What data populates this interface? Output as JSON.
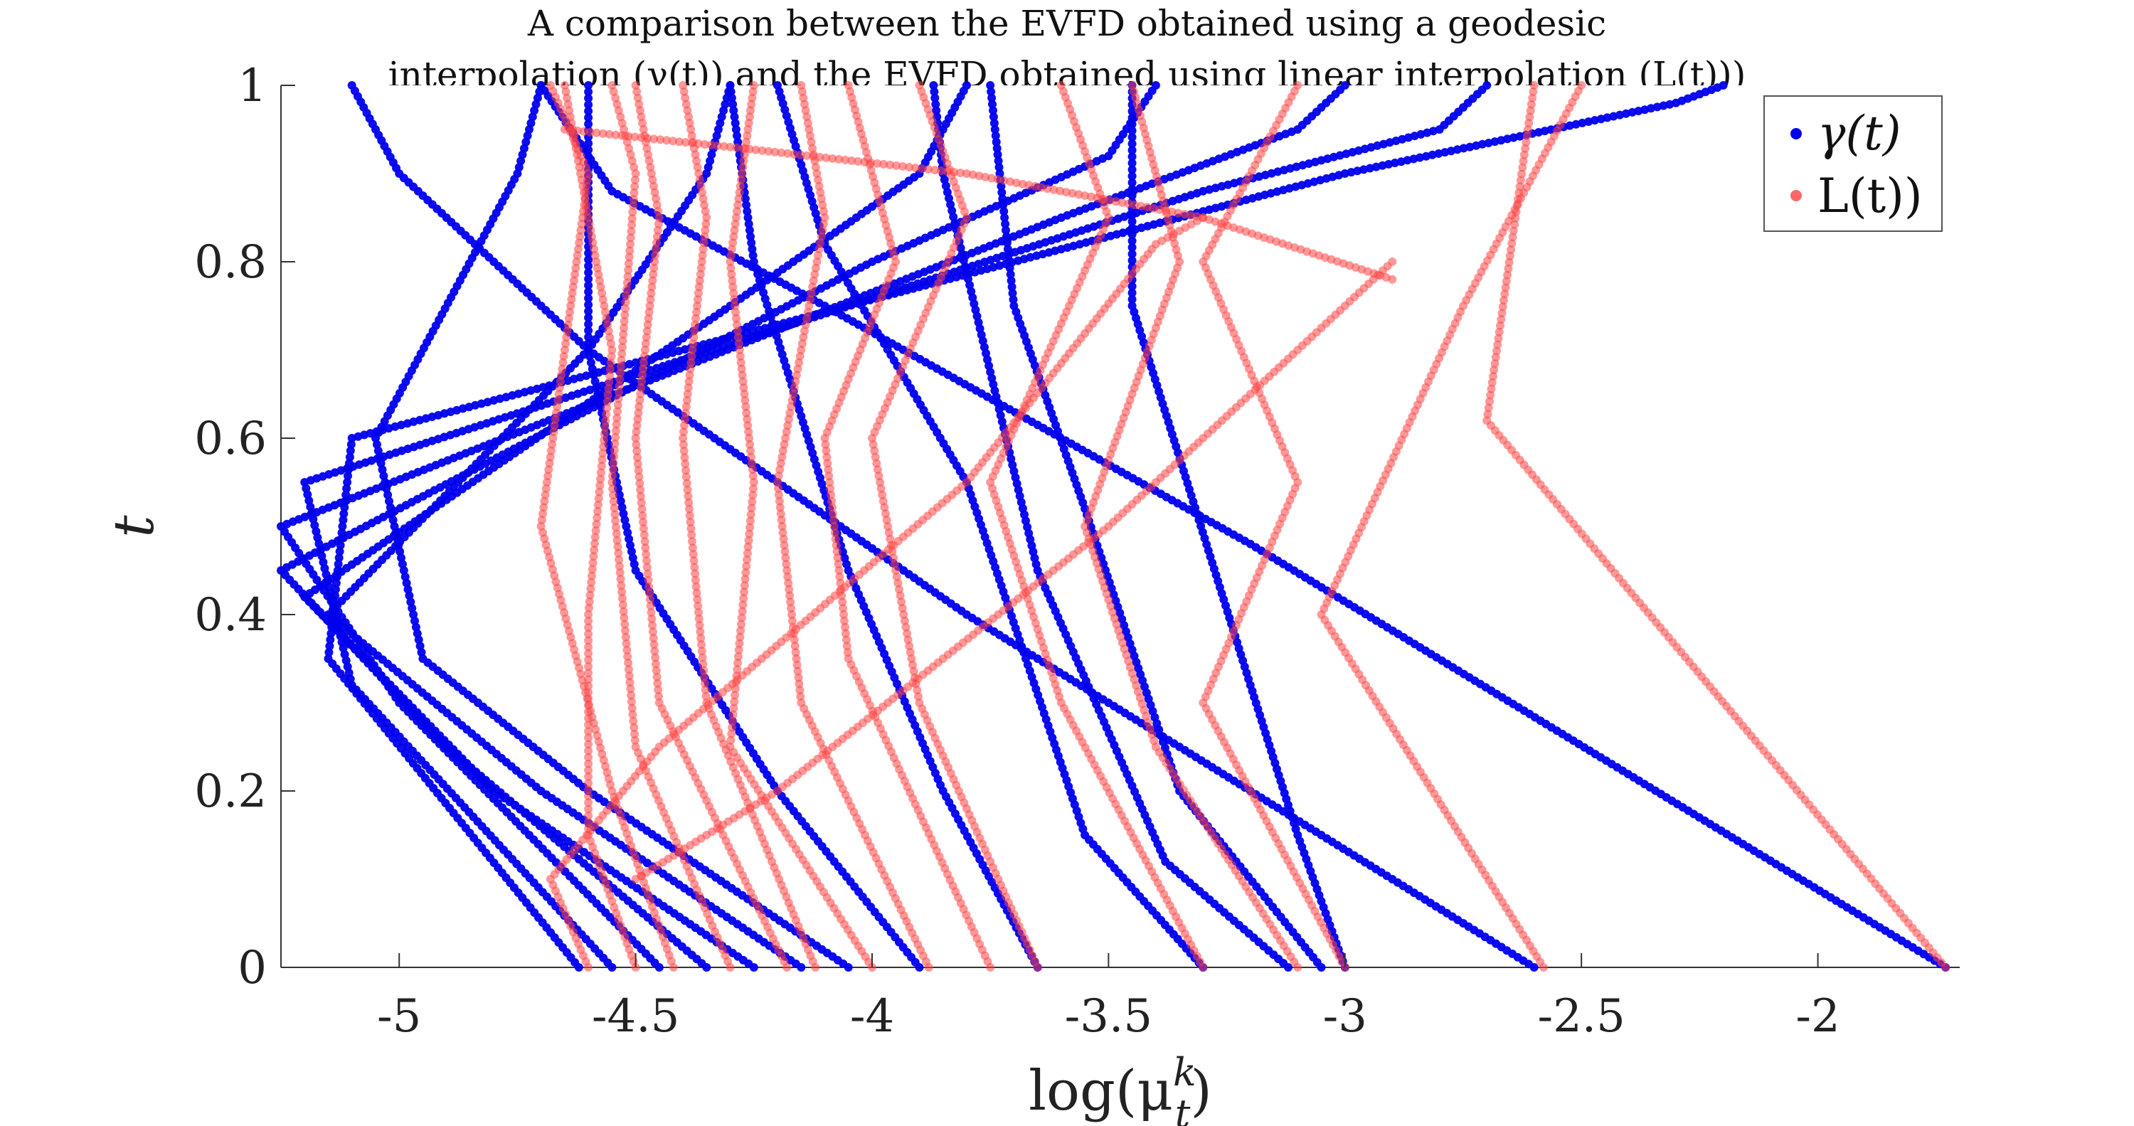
{
  "chart_data": {
    "type": "scatter",
    "title": [
      "A comparison between the EVFD obtained using a geodesic",
      "interpolation (γ(t)) and the EVFD obtained using linear interpolation (L(t)))"
    ],
    "xlabel": "log(μ",
    "xlabel_sup": "k",
    "xlabel_sub": "t",
    "xlabel_tail": ")",
    "ylabel": "t",
    "xlim": [
      -5.25,
      -1.7
    ],
    "ylim": [
      0,
      1
    ],
    "x_ticks": [
      -5,
      -4.5,
      -4,
      -3.5,
      -3,
      -2.5,
      -2
    ],
    "x_tick_labels": [
      "-5",
      "-4.5",
      "-4",
      "-3.5",
      "-3",
      "-2.5",
      "-2"
    ],
    "y_ticks": [
      0,
      0.2,
      0.4,
      0.6,
      0.8,
      1
    ],
    "y_tick_labels": [
      "0",
      "0.2",
      "0.4",
      "0.6",
      "0.8",
      "1"
    ],
    "legend": {
      "placement": "top-right",
      "entries": [
        {
          "label": "γ(t)",
          "color": "#0000ee"
        },
        {
          "label": "L(t))",
          "color": "#ff4444"
        }
      ]
    },
    "series": [
      {
        "legend_index": 0,
        "color": "#0000ee",
        "curves": [
          [
            [
              -1.73,
              0
            ],
            [
              -3.2,
              0.48
            ],
            [
              -4.1,
              0.75
            ],
            [
              -4.55,
              0.88
            ],
            [
              -4.7,
              1
            ]
          ],
          [
            [
              -2.6,
              0
            ],
            [
              -3.8,
              0.4
            ],
            [
              -4.6,
              0.7
            ],
            [
              -5.0,
              0.9
            ],
            [
              -5.1,
              1
            ]
          ],
          [
            [
              -3.0,
              0
            ],
            [
              -3.1,
              0.15
            ],
            [
              -3.2,
              0.32
            ],
            [
              -3.45,
              0.75
            ],
            [
              -3.45,
              1
            ]
          ],
          [
            [
              -3.05,
              0
            ],
            [
              -3.35,
              0.2
            ],
            [
              -3.55,
              0.52
            ],
            [
              -3.7,
              0.75
            ],
            [
              -3.75,
              1
            ]
          ],
          [
            [
              -3.12,
              0
            ],
            [
              -3.38,
              0.12
            ],
            [
              -3.65,
              0.45
            ],
            [
              -3.85,
              0.9
            ],
            [
              -3.87,
              1
            ]
          ],
          [
            [
              -3.3,
              0
            ],
            [
              -3.55,
              0.15
            ],
            [
              -3.8,
              0.55
            ],
            [
              -4.1,
              0.82
            ],
            [
              -4.2,
              1
            ]
          ],
          [
            [
              -3.65,
              0
            ],
            [
              -3.85,
              0.2
            ],
            [
              -4.05,
              0.45
            ],
            [
              -4.25,
              0.8
            ],
            [
              -4.3,
              1
            ]
          ],
          [
            [
              -3.9,
              0
            ],
            [
              -4.2,
              0.2
            ],
            [
              -4.5,
              0.45
            ],
            [
              -4.6,
              0.7
            ],
            [
              -4.6,
              1
            ]
          ],
          [
            [
              -4.05,
              0
            ],
            [
              -4.6,
              0.2
            ],
            [
              -4.95,
              0.35
            ],
            [
              -5.05,
              0.6
            ],
            [
              -4.75,
              0.9
            ],
            [
              -4.7,
              1
            ]
          ],
          [
            [
              -4.15,
              0
            ],
            [
              -4.7,
              0.2
            ],
            [
              -5.15,
              0.4
            ],
            [
              -4.6,
              0.7
            ],
            [
              -4.35,
              0.9
            ],
            [
              -4.3,
              1
            ]
          ],
          [
            [
              -4.25,
              0
            ],
            [
              -4.8,
              0.2
            ],
            [
              -5.2,
              0.42
            ],
            [
              -4.3,
              0.75
            ],
            [
              -3.9,
              0.9
            ],
            [
              -3.8,
              1
            ]
          ],
          [
            [
              -4.35,
              0
            ],
            [
              -4.9,
              0.25
            ],
            [
              -5.25,
              0.45
            ],
            [
              -4.0,
              0.8
            ],
            [
              -3.5,
              0.92
            ],
            [
              -3.4,
              1
            ]
          ],
          [
            [
              -4.45,
              0
            ],
            [
              -5.0,
              0.3
            ],
            [
              -5.25,
              0.5
            ],
            [
              -3.6,
              0.85
            ],
            [
              -3.1,
              0.95
            ],
            [
              -3.0,
              1
            ]
          ],
          [
            [
              -4.55,
              0
            ],
            [
              -5.1,
              0.32
            ],
            [
              -5.2,
              0.55
            ],
            [
              -3.3,
              0.88
            ],
            [
              -2.8,
              0.95
            ],
            [
              -2.7,
              1
            ]
          ],
          [
            [
              -4.62,
              0
            ],
            [
              -5.15,
              0.35
            ],
            [
              -5.1,
              0.6
            ],
            [
              -3.0,
              0.9
            ],
            [
              -2.3,
              0.98
            ],
            [
              -2.2,
              1
            ]
          ]
        ]
      },
      {
        "legend_index": 1,
        "color": "#ff4444",
        "curves": [
          [
            [
              -1.73,
              0
            ],
            [
              -2.7,
              0.62
            ],
            [
              -2.6,
              1
            ]
          ],
          [
            [
              -2.58,
              0
            ],
            [
              -3.05,
              0.4
            ],
            [
              -2.75,
              0.75
            ],
            [
              -2.5,
              1
            ]
          ],
          [
            [
              -3.0,
              0
            ],
            [
              -3.3,
              0.3
            ],
            [
              -3.1,
              0.55
            ],
            [
              -3.3,
              0.8
            ],
            [
              -3.1,
              1
            ]
          ],
          [
            [
              -3.1,
              0
            ],
            [
              -3.4,
              0.25
            ],
            [
              -3.55,
              0.5
            ],
            [
              -3.35,
              0.8
            ],
            [
              -3.45,
              1
            ]
          ],
          [
            [
              -3.3,
              0
            ],
            [
              -3.6,
              0.3
            ],
            [
              -3.75,
              0.55
            ],
            [
              -3.5,
              0.85
            ],
            [
              -3.6,
              1
            ]
          ],
          [
            [
              -3.65,
              0
            ],
            [
              -3.9,
              0.3
            ],
            [
              -4.0,
              0.6
            ],
            [
              -3.8,
              0.85
            ],
            [
              -3.9,
              1
            ]
          ],
          [
            [
              -3.75,
              0
            ],
            [
              -4.05,
              0.35
            ],
            [
              -4.1,
              0.6
            ],
            [
              -3.95,
              0.8
            ],
            [
              -4.05,
              1
            ]
          ],
          [
            [
              -3.88,
              0
            ],
            [
              -4.15,
              0.3
            ],
            [
              -4.2,
              0.55
            ],
            [
              -4.1,
              0.85
            ],
            [
              -4.15,
              1
            ]
          ],
          [
            [
              -4.0,
              0
            ],
            [
              -4.3,
              0.25
            ],
            [
              -4.25,
              0.55
            ],
            [
              -4.3,
              0.8
            ],
            [
              -4.25,
              1
            ]
          ],
          [
            [
              -4.12,
              0
            ],
            [
              -4.35,
              0.3
            ],
            [
              -4.4,
              0.6
            ],
            [
              -4.35,
              0.85
            ],
            [
              -4.4,
              1
            ]
          ],
          [
            [
              -4.18,
              0
            ],
            [
              -4.45,
              0.3
            ],
            [
              -4.5,
              0.6
            ],
            [
              -4.45,
              0.85
            ],
            [
              -4.5,
              1
            ]
          ],
          [
            [
              -4.3,
              0
            ],
            [
              -4.5,
              0.25
            ],
            [
              -4.55,
              0.55
            ],
            [
              -4.5,
              0.9
            ],
            [
              -4.55,
              1
            ]
          ],
          [
            [
              -4.42,
              0
            ],
            [
              -4.55,
              0.2
            ],
            [
              -4.7,
              0.5
            ],
            [
              -4.6,
              0.9
            ],
            [
              -4.68,
              1
            ]
          ],
          [
            [
              -4.5,
              0
            ],
            [
              -4.6,
              0.15
            ],
            [
              -4.6,
              0.4
            ],
            [
              -4.55,
              0.7
            ],
            [
              -4.65,
              1
            ]
          ],
          [
            [
              -4.6,
              0
            ],
            [
              -4.68,
              0.1
            ],
            [
              -4.45,
              0.25
            ],
            [
              -3.8,
              0.55
            ],
            [
              -3.4,
              0.82
            ],
            [
              -3.3,
              0.85
            ]
          ],
          [
            [
              -4.5,
              0.1
            ],
            [
              -4.2,
              0.2
            ],
            [
              -3.5,
              0.5
            ],
            [
              -3.1,
              0.7
            ],
            [
              -2.9,
              0.8
            ]
          ],
          [
            [
              -4.65,
              0.95
            ],
            [
              -4.3,
              0.93
            ],
            [
              -3.8,
              0.9
            ],
            [
              -3.3,
              0.85
            ],
            [
              -2.9,
              0.78
            ]
          ]
        ]
      }
    ]
  }
}
